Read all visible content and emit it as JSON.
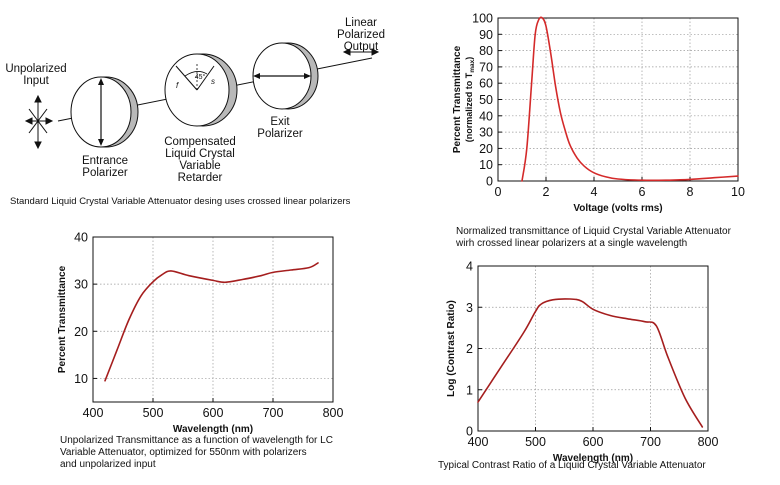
{
  "diagram": {
    "labels": {
      "unpolarized_input": "Unpolarized\nInput",
      "entrance_polarizer": "Entrance\nPolarizer",
      "compensated_retarder": "Compensated\nLiquid Crystal\nVariable\nRetarder",
      "exit_polarizer": "Exit\nPolarizer",
      "linear_polarized_output": "Linear\nPolarized\nOutput",
      "angle": "45°",
      "f_axis": "f",
      "s_axis": "s"
    },
    "caption": "Standard Liquid Crystal Variable Attenuator desing uses crossed linear polarizers"
  },
  "chart_data": [
    {
      "id": "voltage",
      "type": "line",
      "title": "",
      "xlabel": "Voltage (volts rms)",
      "ylabel": "Percent Transmittance",
      "ylabel_sub": "(normalized to T",
      "ylabel_sub_suffix": "max",
      "ylabel_sub_close": ")",
      "xlim": [
        0,
        10
      ],
      "ylim": [
        0,
        100
      ],
      "xticks": [
        0,
        2,
        4,
        6,
        8,
        10
      ],
      "yticks": [
        0,
        10,
        20,
        30,
        40,
        50,
        60,
        70,
        80,
        90,
        100
      ],
      "grid": true,
      "color": "#d42a2a",
      "x": [
        1.0,
        1.2,
        1.4,
        1.55,
        1.7,
        1.85,
        2.0,
        2.2,
        2.4,
        2.6,
        2.8,
        3.0,
        3.3,
        3.6,
        4.0,
        4.5,
        5.0,
        6.0,
        7.0,
        8.0,
        9.0,
        10.0
      ],
      "y": [
        0,
        20,
        60,
        90,
        99,
        100,
        95,
        78,
        58,
        42,
        31,
        22,
        14,
        9,
        5,
        2.5,
        1.2,
        0.5,
        0.5,
        1.0,
        2.0,
        3.0
      ],
      "caption": "Normalized transmittance of Liquid Crystal Variable Attenuator\nwirh crossed linear polarizers at a single wavelength"
    },
    {
      "id": "wavelength_transmittance",
      "type": "line",
      "title": "",
      "xlabel": "Wavelength (nm)",
      "ylabel": "Percent Transmittance",
      "xlim": [
        400,
        800
      ],
      "ylim": [
        5,
        40
      ],
      "xticks": [
        400,
        500,
        600,
        700,
        800
      ],
      "yticks": [
        10,
        20,
        30,
        40
      ],
      "grid": true,
      "color": "#a51e1e",
      "x": [
        420,
        440,
        460,
        480,
        500,
        515,
        530,
        560,
        600,
        620,
        650,
        680,
        700,
        730,
        760,
        775
      ],
      "y": [
        9.5,
        16,
        22.5,
        27.5,
        30.5,
        32,
        32.8,
        31.8,
        30.8,
        30.4,
        31,
        31.8,
        32.5,
        33,
        33.5,
        34.5
      ],
      "caption": "Unpolarized Transmittance as a function of wavelength for LC\nVariable Attenuator, optimized for 550nm with polarizers\nand unpolarized input"
    },
    {
      "id": "contrast_ratio",
      "type": "line",
      "title": "",
      "xlabel": "Wavelength (nm)",
      "ylabel": "Log (Contrast Ratio)",
      "xlim": [
        400,
        800
      ],
      "ylim": [
        0,
        4
      ],
      "xticks": [
        400,
        500,
        600,
        700,
        800
      ],
      "yticks": [
        0,
        1,
        2,
        3,
        4
      ],
      "grid": true,
      "color": "#a51e1e",
      "x": [
        400,
        440,
        480,
        500,
        510,
        530,
        560,
        580,
        600,
        630,
        660,
        690,
        710,
        730,
        760,
        790
      ],
      "y": [
        0.7,
        1.55,
        2.4,
        2.9,
        3.08,
        3.18,
        3.2,
        3.15,
        2.95,
        2.8,
        2.72,
        2.65,
        2.55,
        1.8,
        0.8,
        0.1
      ],
      "caption": "Typical Contrast Ratio of a Liquid Crystal Variable Attenuator"
    }
  ]
}
